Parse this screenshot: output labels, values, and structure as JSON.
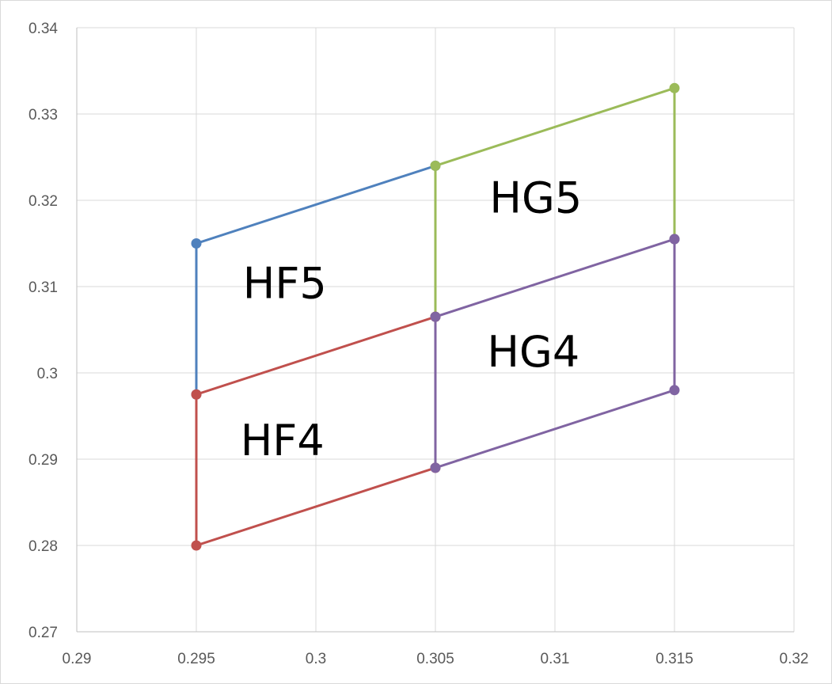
{
  "chart_data": {
    "type": "scatter",
    "title": "",
    "xlabel": "",
    "ylabel": "",
    "xlim": [
      0.29,
      0.32
    ],
    "ylim": [
      0.27,
      0.34
    ],
    "grid": true,
    "x_ticks": [
      "0.29",
      "0.295",
      "0.3",
      "0.305",
      "0.31",
      "0.315",
      "0.32"
    ],
    "y_ticks": [
      "0.27",
      "0.28",
      "0.29",
      "0.3",
      "0.31",
      "0.32",
      "0.33",
      "0.34"
    ],
    "series": [
      {
        "color": "#4f81bd",
        "points": [
          [
            0.295,
            0.2975
          ],
          [
            0.295,
            0.315
          ],
          [
            0.305,
            0.324
          ]
        ]
      },
      {
        "color": "#9bbb59",
        "points": [
          [
            0.305,
            0.3065
          ],
          [
            0.305,
            0.324
          ],
          [
            0.315,
            0.333
          ],
          [
            0.315,
            0.3155
          ]
        ]
      },
      {
        "color": "#c0504d",
        "points": [
          [
            0.305,
            0.3065
          ],
          [
            0.295,
            0.2975
          ],
          [
            0.295,
            0.28
          ],
          [
            0.305,
            0.289
          ]
        ]
      },
      {
        "color": "#8064a2",
        "points": [
          [
            0.315,
            0.3155
          ],
          [
            0.305,
            0.3065
          ],
          [
            0.305,
            0.289
          ],
          [
            0.315,
            0.298
          ],
          [
            0.315,
            0.3155
          ]
        ]
      }
    ],
    "annotations": [
      {
        "text": "HF5",
        "x": 0.2987,
        "y": 0.3104
      },
      {
        "text": "HG5",
        "x": 0.3092,
        "y": 0.3203
      },
      {
        "text": "HG4",
        "x": 0.3091,
        "y": 0.3025
      },
      {
        "text": "HF4",
        "x": 0.2986,
        "y": 0.2922
      }
    ]
  }
}
